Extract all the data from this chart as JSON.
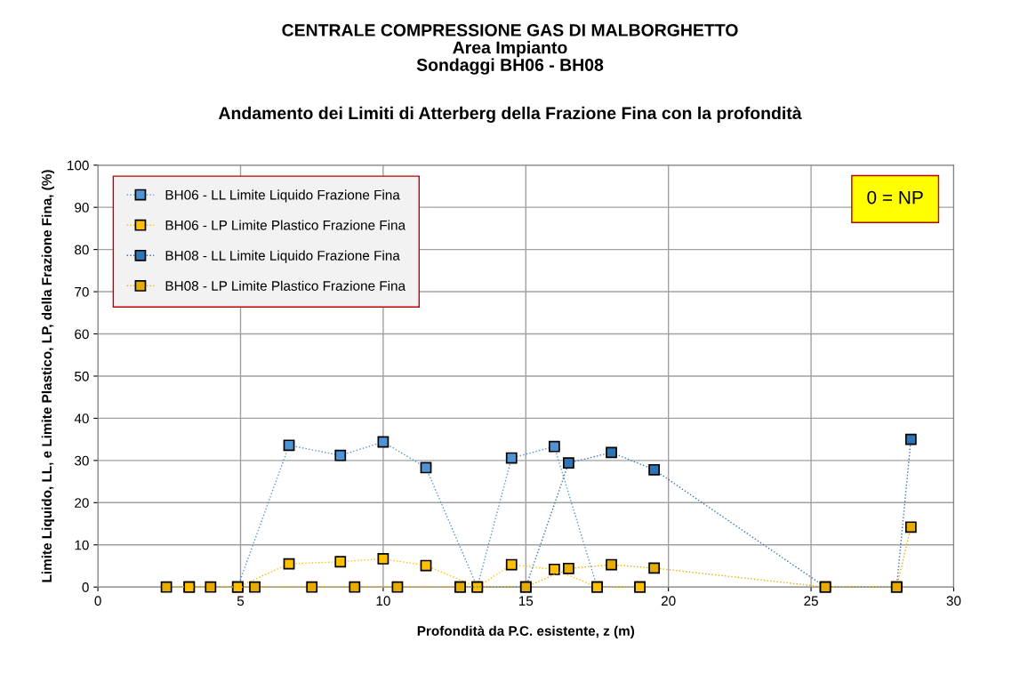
{
  "chart_data": {
    "type": "line",
    "title": "CENTRALE COMPRESSIONE GAS DI MALBORGHETTO\nArea Impianto\nSondaggi BH06 - BH08",
    "subtitle": "Andamento dei Limiti di Atterberg della Frazione Fina con la profondità",
    "xlabel": "Profondità da P.C. esistente, z (m)",
    "ylabel": "Limite Liquido, LL, e Limite Plastico, LP, della Frazione Fina, (%)",
    "series": [
      {
        "name": "BH06 - LL Limite Liquido Frazione Fina",
        "color": "#4f94d4",
        "x": [
          3.2,
          4.9,
          6.7,
          8.5,
          10.0,
          11.5,
          13.3,
          14.5,
          16.0,
          17.5,
          19.0
        ],
        "values": [
          0,
          0,
          33.6,
          31.2,
          34.4,
          28.3,
          0,
          30.6,
          33.3,
          0,
          0
        ]
      },
      {
        "name": "BH06 - LP Limite Plastico Frazione Fina",
        "color": "#ffc000",
        "x": [
          3.2,
          4.9,
          6.7,
          8.5,
          10.0,
          11.5,
          13.3,
          14.5,
          16.0,
          17.5,
          19.0
        ],
        "values": [
          0,
          0,
          5.5,
          6.0,
          6.7,
          5.1,
          0,
          5.3,
          4.2,
          0,
          0
        ]
      },
      {
        "name": "BH08 - LL Limite Liquido Frazione Fina",
        "color": "#2e75b6",
        "x": [
          12.7,
          15.0,
          16.5,
          18.0,
          19.5,
          25.5,
          28.0,
          28.5
        ],
        "values": [
          0,
          0,
          29.4,
          31.9,
          27.8,
          0,
          0,
          35.0
        ]
      },
      {
        "name": "BH08 - LP Limite Plastico Frazione Fina",
        "color": "#e6ac00",
        "x": [
          2.4,
          3.95,
          5.5,
          7.5,
          9.0,
          10.5,
          12.7,
          15.0,
          16.5,
          18.0,
          19.5,
          25.5,
          28.0,
          28.5
        ],
        "values": [
          0,
          0,
          0,
          0,
          0,
          0,
          0,
          0,
          4.4,
          5.3,
          4.5,
          0,
          0,
          14.2
        ]
      }
    ],
    "annotations": [
      "0 = NP"
    ],
    "xlim": [
      0,
      30
    ],
    "xticks": [
      0,
      5,
      10,
      15,
      20,
      25,
      30
    ],
    "ylim": [
      0,
      100
    ],
    "yticks": [
      0,
      10,
      20,
      30,
      40,
      50,
      60,
      70,
      80,
      90,
      100
    ],
    "grid": true,
    "legend": "top left",
    "marker": "square",
    "line_style": "dotted"
  }
}
